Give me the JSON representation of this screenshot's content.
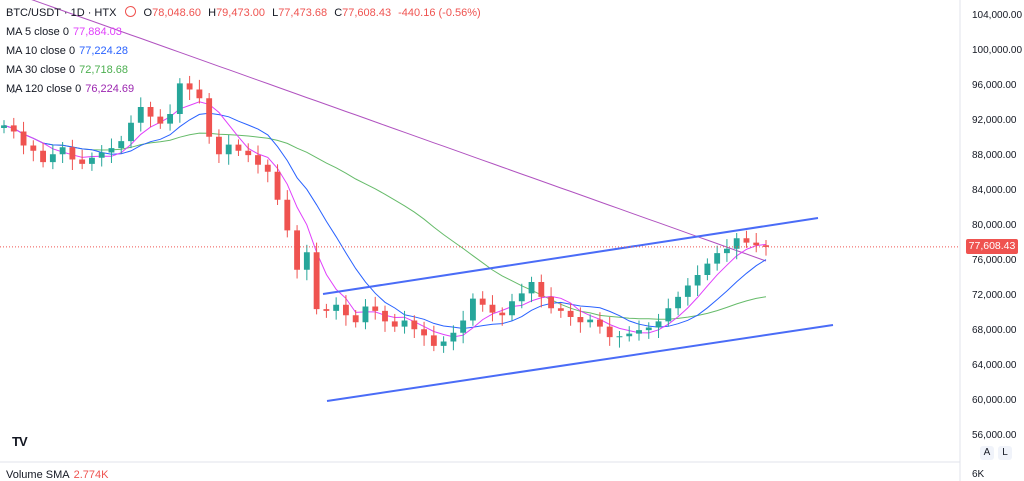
{
  "header": {
    "symbol": "BTC/USDT · 1D · HTX",
    "open_label": "O",
    "open": "78,048.60",
    "high_label": "H",
    "high": "79,473.00",
    "low_label": "L",
    "low": "77,473.68",
    "close_label": "C",
    "close": "77,608.43",
    "change": "-440.16 (-0.56%)"
  },
  "indicators": [
    {
      "label": "MA 5 close 0",
      "value": "77,884.03",
      "color": "#e040fb"
    },
    {
      "label": "MA 10 close 0",
      "value": "77,224.28",
      "color": "#2962ff"
    },
    {
      "label": "MA 30 close 0",
      "value": "72,718.68",
      "color": "#4caf50"
    },
    {
      "label": "MA 120 close 0",
      "value": "76,224.69",
      "color": "#9c27b0"
    }
  ],
  "volume": {
    "label": "Volume SMA",
    "value": "2.774K",
    "axis_label": "6K"
  },
  "price_axis": {
    "ticks": [
      "104,000.00",
      "100,000.00",
      "96,000.00",
      "92,000.00",
      "88,000.00",
      "84,000.00",
      "80,000.00",
      "76,000.00",
      "72,000.00",
      "68,000.00",
      "64,000.00",
      "60,000.00",
      "56,000.00"
    ],
    "current_price_label": "77,608.43",
    "buttons": [
      "A",
      "L"
    ]
  },
  "icons": {
    "logo": "tradingview-logo-icon",
    "scroll_up": "chevron-up-icon"
  },
  "colors": {
    "up": "#26a69a",
    "down": "#ef5350",
    "channel": "#4a6cf7"
  },
  "chart_data": {
    "type": "candlestick",
    "ylim": [
      54000,
      106000
    ],
    "yticks": [
      104000,
      100000,
      96000,
      92000,
      88000,
      84000,
      80000,
      76000,
      72000,
      68000,
      64000,
      60000,
      56000
    ],
    "current_price": 77608.43,
    "close_approx": [
      91500,
      90800,
      89200,
      88600,
      87300,
      88200,
      89000,
      87600,
      87100,
      87800,
      88400,
      88900,
      89700,
      91800,
      93600,
      92500,
      91700,
      92800,
      96300,
      95600,
      94600,
      90200,
      88200,
      89300,
      88600,
      88100,
      87000,
      86200,
      83000,
      79500,
      75000,
      77000,
      70500,
      70300,
      71000,
      69800,
      69000,
      70800,
      70300,
      69100,
      68500,
      69200,
      68200,
      67500,
      66300,
      66800,
      67800,
      69200,
      71700,
      71000,
      70100,
      69800,
      71400,
      72300,
      73600,
      71900,
      70600,
      70300,
      69600,
      69000,
      69300,
      68500,
      67300,
      67400,
      67700,
      68100,
      68400,
      69100,
      70600,
      71900,
      73200,
      74400,
      75700,
      76900,
      77400,
      78600,
      78100,
      77800,
      77608
    ],
    "ma5_last": 77884.03,
    "ma10_last": 77224.28,
    "ma30_last": 72718.68,
    "ma120_last": 76224.69
  }
}
